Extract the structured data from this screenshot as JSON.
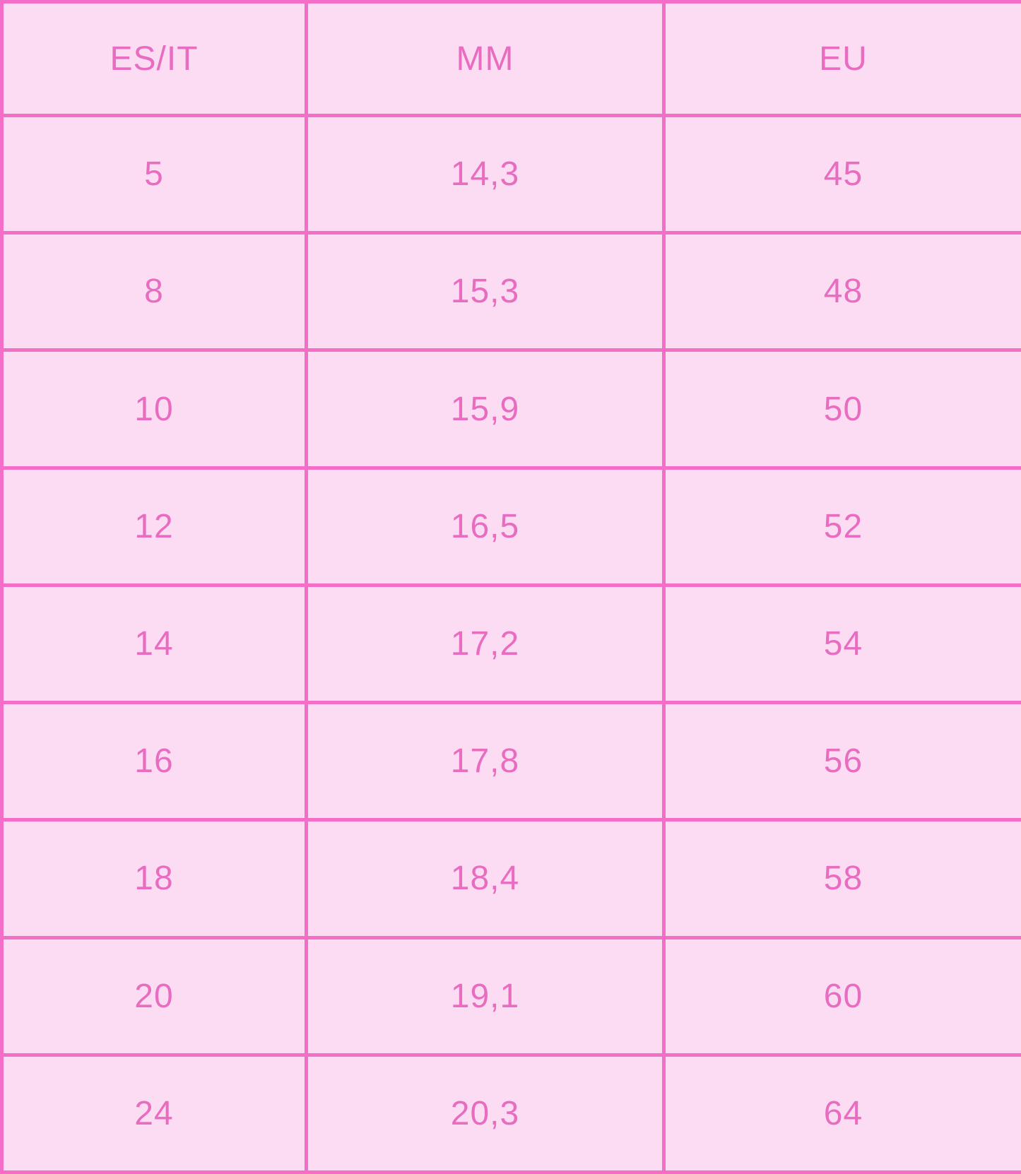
{
  "colors": {
    "border": "#f46dc6",
    "background": "#fcdcf2",
    "text": "#e86cc0"
  },
  "headers": [
    "ES/IT",
    "MM",
    "EU"
  ],
  "rows": [
    [
      "5",
      "14,3",
      "45"
    ],
    [
      "8",
      "15,3",
      "48"
    ],
    [
      "10",
      "15,9",
      "50"
    ],
    [
      "12",
      "16,5",
      "52"
    ],
    [
      "14",
      "17,2",
      "54"
    ],
    [
      "16",
      "17,8",
      "56"
    ],
    [
      "18",
      "18,4",
      "58"
    ],
    [
      "20",
      "19,1",
      "60"
    ],
    [
      "24",
      "20,3",
      "64"
    ]
  ]
}
